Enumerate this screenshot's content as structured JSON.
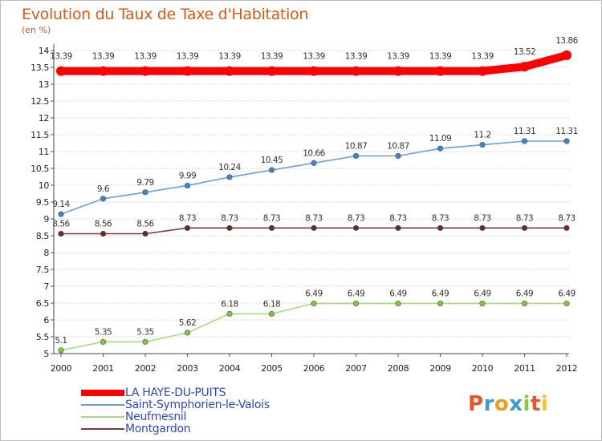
{
  "title": "Evolution du Taux de Taxe d'Habitation",
  "subtitle": "(en %)",
  "logo": {
    "letters": [
      "P",
      "r",
      "o",
      "x",
      "i",
      "t",
      "i"
    ],
    "colors": [
      "#e8532a",
      "#3a9ad9",
      "#f29b1d",
      "#3a9ad9",
      "#8dc63f",
      "#e8532a",
      "#f2c12e"
    ]
  },
  "chart_data": {
    "type": "line",
    "title": "Evolution du Taux de Taxe d'Habitation",
    "ylabel": "(en %)",
    "xlabel": "",
    "ylim": [
      5,
      14
    ],
    "yticks": [
      "5",
      "5.5",
      "6",
      "6.5",
      "7",
      "7.5",
      "8",
      "8.5",
      "9",
      "9.5",
      "10",
      "10.5",
      "11",
      "11.5",
      "12",
      "12.5",
      "13",
      "13.5",
      "14"
    ],
    "x": [
      "2000",
      "2001",
      "2002",
      "2003",
      "2004",
      "2005",
      "2006",
      "2007",
      "2008",
      "2009",
      "2010",
      "2011",
      "2012"
    ],
    "grid": "horizontal",
    "series": [
      {
        "name": "LA HAYE-DU-PUITS",
        "color": "#ff0000",
        "emphasis": "thick",
        "values": [
          13.39,
          13.39,
          13.39,
          13.39,
          13.39,
          13.39,
          13.39,
          13.39,
          13.39,
          13.39,
          13.39,
          13.52,
          13.86
        ],
        "labels": [
          "13.39",
          "13.39",
          "13.39",
          "13.39",
          "13.39",
          "13.39",
          "13.39",
          "13.39",
          "13.39",
          "13.39",
          "13.39",
          "13.52",
          "13.86"
        ]
      },
      {
        "name": "Saint-Symphorien-le-Valois",
        "color": "#6e9fcf",
        "marker_color": "#3a86c8",
        "values": [
          9.14,
          9.6,
          9.79,
          9.99,
          10.24,
          10.45,
          10.66,
          10.87,
          10.87,
          11.09,
          11.2,
          11.31,
          11.31
        ],
        "labels": [
          "9.14",
          "9.6",
          "9.79",
          "9.99",
          "10.24",
          "10.45",
          "10.66",
          "10.87",
          "10.87",
          "11.09",
          "11.2",
          "11.31",
          "11.31"
        ]
      },
      {
        "name": "Neufmesnil",
        "color": "#a8dc80",
        "marker_color": "#7fc838",
        "values": [
          5.1,
          5.35,
          5.35,
          5.62,
          6.18,
          6.18,
          6.49,
          6.49,
          6.49,
          6.49,
          6.49,
          6.49,
          6.49
        ],
        "labels": [
          "5.1",
          "5.35",
          "5.35",
          "5.62",
          "6.18",
          "6.18",
          "6.49",
          "6.49",
          "6.49",
          "6.49",
          "6.49",
          "6.49",
          "6.49"
        ]
      },
      {
        "name": "Montgardon",
        "color": "#7a3a3a",
        "marker_color": "#6b2a2a",
        "values": [
          8.56,
          8.56,
          8.56,
          8.73,
          8.73,
          8.73,
          8.73,
          8.73,
          8.73,
          8.73,
          8.73,
          8.73,
          8.73
        ],
        "labels": [
          "8.56",
          "8.56",
          "8.56",
          "8.73",
          "8.73",
          "8.73",
          "8.73",
          "8.73",
          "8.73",
          "8.73",
          "8.73",
          "8.73",
          "8.73"
        ]
      }
    ],
    "legend": "bottom-left"
  }
}
